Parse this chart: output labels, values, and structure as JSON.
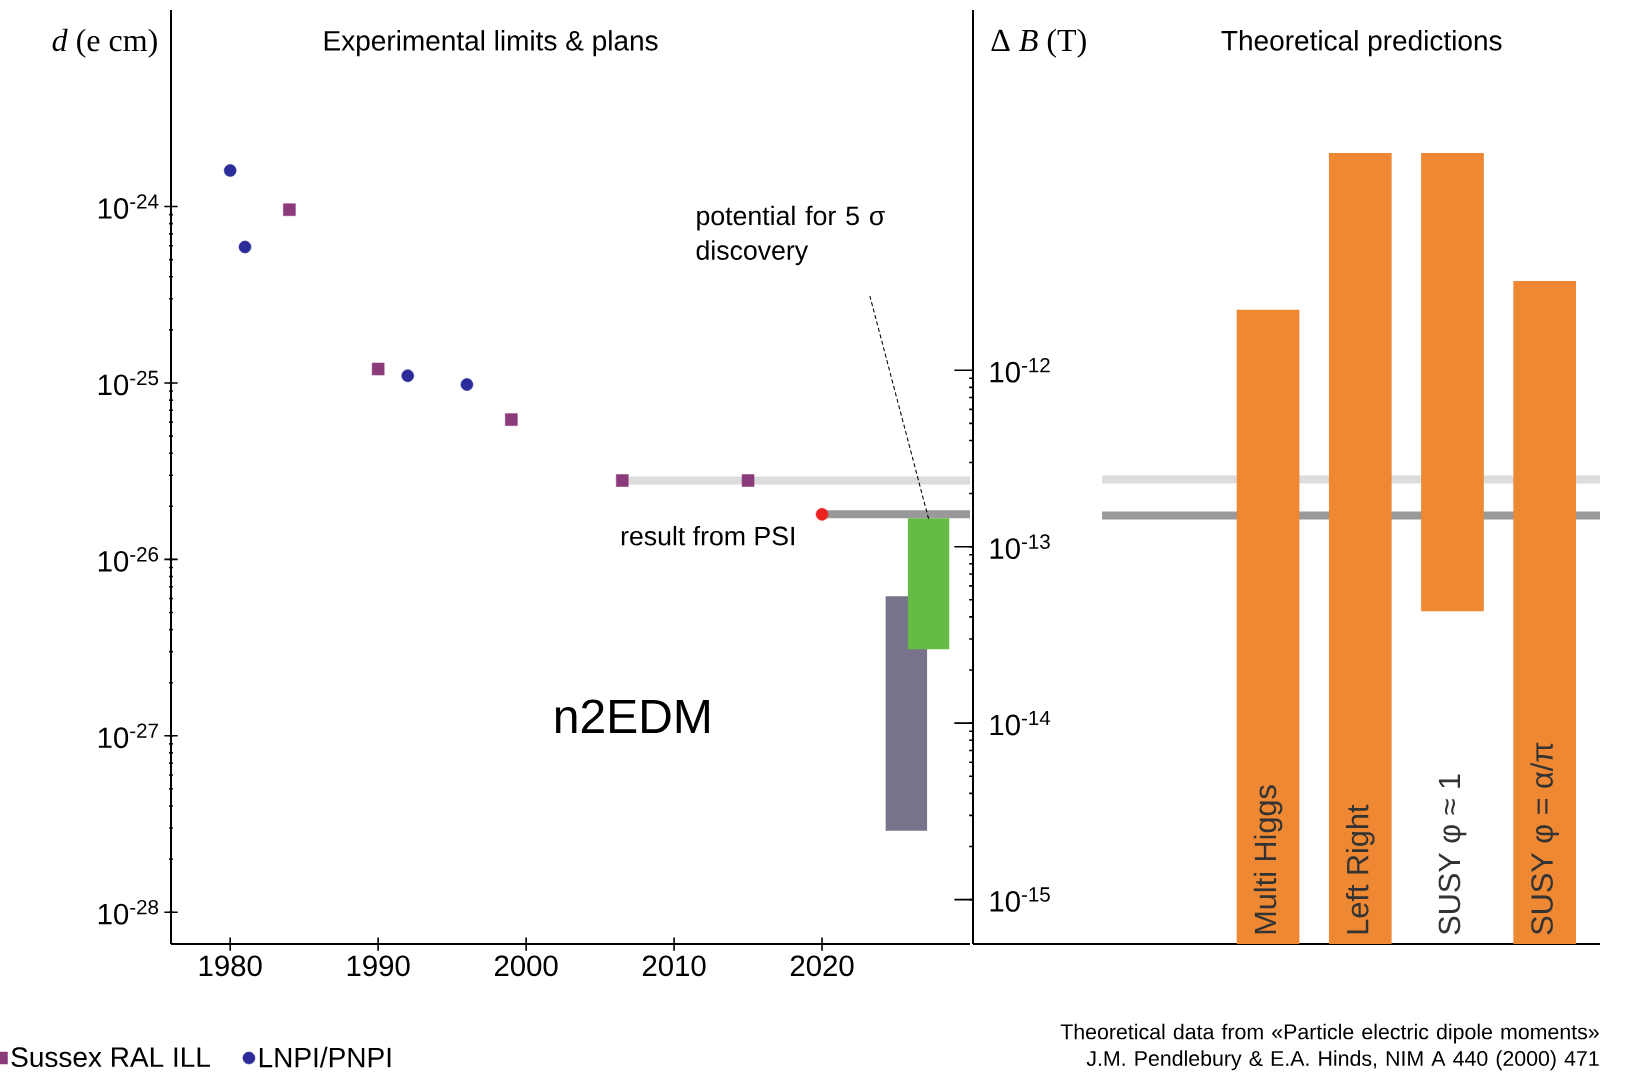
{
  "chart_data": [
    {
      "type": "scatter",
      "title": "Experimental limits & plans",
      "ylabel": "*d* (e cm)",
      "log": "y",
      "xlim": [
        1976,
        2030
      ],
      "xticks": [
        1980,
        1990,
        2000,
        2010,
        2020
      ],
      "ylim": [
        6.6e-29,
        1.3e-23
      ],
      "yticks": [
        {
          "value": 1e-28,
          "label": "10$^{-28}$"
        },
        {
          "value": 1e-27,
          "label": "10$^{-27}$"
        },
        {
          "value": 1e-26,
          "label": "10$^{-26}$"
        },
        {
          "value": 1e-25,
          "label": "10$^{-25}$"
        },
        {
          "value": 1e-24,
          "label": "10$^{-24}$"
        }
      ],
      "legend": "bottom left",
      "series": [
        {
          "type": "line",
          "color": "#dcdcdc",
          "x": [
            2006.5,
            2030
          ],
          "values": [
            2.8e-26,
            2.8e-26
          ]
        },
        {
          "type": "line",
          "color": "#999999",
          "x": [
            2020,
            2030
          ],
          "values": [
            1.8e-26,
            1.8e-26
          ]
        },
        {
          "type": "bar",
          "color": "#77738a",
          "x": [
            2025.7
          ],
          "base": [
            2.9e-28
          ],
          "values": [
            5.9e-27
          ]
        },
        {
          "type": "bar",
          "color": "#66bb44",
          "x": [
            2027.2
          ],
          "base": [
            3.1e-27
          ],
          "values": [
            1.4e-26
          ]
        },
        {
          "name": "Sussex RAL ILL",
          "color": "#8b3a7a",
          "marker": "square",
          "x": [
            1984,
            1990,
            1999,
            2006.5,
            2015
          ],
          "values": [
            9.6e-25,
            1.2e-25,
            6.2e-26,
            2.8e-26,
            2.8e-26
          ]
        },
        {
          "name": "LNPI/PNPI",
          "color": "#2b2b9a",
          "marker": "circle",
          "x": [
            1980,
            1981,
            1992,
            1996
          ],
          "values": [
            1.6e-24,
            5.9e-25,
            1.1e-25,
            9.8e-26
          ]
        },
        {
          "color": "#ee2222",
          "marker": "circle",
          "x": [
            2020
          ],
          "values": [
            1.8e-26
          ]
        }
      ],
      "annotations": [
        {
          "text": "potential for 5 σ discovery",
          "x": 2027.2,
          "y": 1.7e-26
        },
        {
          "text": "result from PSI",
          "x": 2020,
          "y": 1.8e-26
        },
        "n2EDM"
      ]
    },
    {
      "type": "bar",
      "title": "Theoretical predictions",
      "ylabel": "Δ *B* (T)",
      "log": "y",
      "ylim": [
        5.6e-16,
        1.1e-10
      ],
      "yticks": [
        {
          "value": 1e-15,
          "label": "10$^{-15}$"
        },
        {
          "value": 1e-14,
          "label": "10$^{-14}$"
        },
        {
          "value": 1e-13,
          "label": "10$^{-13}$"
        },
        {
          "value": 1e-12,
          "label": "10$^{-12}$"
        }
      ],
      "categories": [
        "Multi Higgs",
        "Left Right",
        "SUSY φ ≈ 1",
        "SUSY φ = α/π"
      ],
      "base": [
        5.6e-16,
        5.6e-16,
        4.3e-14,
        5.6e-16
      ],
      "values": [
        2.2e-12,
        1.7e-11,
        1.7e-11,
        3.2e-12
      ],
      "color": "#ee8833",
      "ref_lines": [
        {
          "axis": "y",
          "value": 2.4e-13,
          "color": "#dcdcdc"
        },
        {
          "axis": "y",
          "value": 1.5e-13,
          "color": "#999999"
        }
      ],
      "annotations": [
        "Theoretical data from «Particle electric dipole moments» J.M. Pendlebury & E.A. Hinds, NIM A 440 (2000) 471"
      ]
    }
  ]
}
